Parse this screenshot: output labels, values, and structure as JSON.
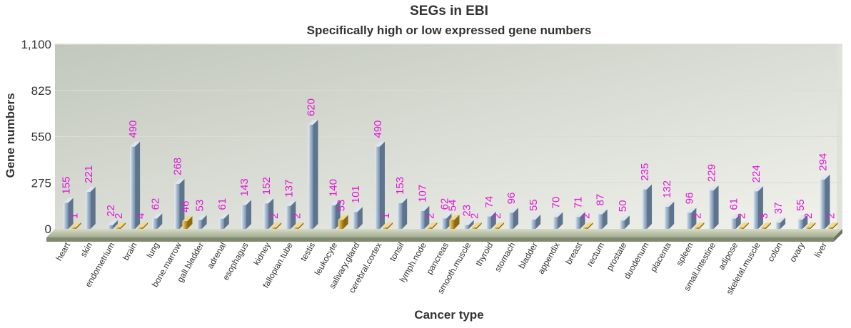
{
  "chart_data": {
    "type": "bar",
    "title": "SEGs in EBI",
    "subtitle": "Specifically high or low expressed gene numbers",
    "xlabel": "Cancer type",
    "ylabel": "Gene numbers",
    "ylim": [
      0,
      1100
    ],
    "yticks": [
      "0",
      "275",
      "550",
      "825",
      "1,100"
    ],
    "grid": true,
    "categories": [
      "heart",
      "skin",
      "endometrium",
      "brain",
      "lung",
      "bone.marrow",
      "gall.bladder",
      "adrenal",
      "esophagus",
      "kidney",
      "fallopian.tube",
      "testis",
      "leukocyte",
      "salivary.gland",
      "cerebral.cortex",
      "tonsil",
      "lymph.node",
      "pancreas",
      "smooth.muscle",
      "thyroid",
      "stomach",
      "bladder",
      "appendix",
      "breast",
      "rectum",
      "prostate",
      "duodenum",
      "placenta",
      "spleen",
      "small.intestine",
      "adipose",
      "skeletal.muscle",
      "colon",
      "ovary",
      "liver"
    ],
    "series": [
      {
        "values": [
          155,
          221,
          22,
          490,
          62,
          268,
          53,
          61,
          143,
          152,
          137,
          620,
          140,
          101,
          490,
          153,
          107,
          62,
          23,
          74,
          96,
          55,
          70,
          71,
          87,
          50,
          235,
          132,
          96,
          229,
          61,
          224,
          37,
          55,
          294
        ]
      },
      {
        "values": [
          1,
          null,
          2,
          4,
          null,
          46,
          null,
          null,
          null,
          2,
          2,
          null,
          53,
          null,
          1,
          null,
          2,
          54,
          2,
          2,
          null,
          null,
          null,
          2,
          null,
          null,
          null,
          null,
          2,
          null,
          2,
          3,
          null,
          2,
          2
        ]
      }
    ],
    "colors": {
      "high": "#8fa7c0",
      "low": "#d9ac3c",
      "label": "#e316d8"
    }
  }
}
